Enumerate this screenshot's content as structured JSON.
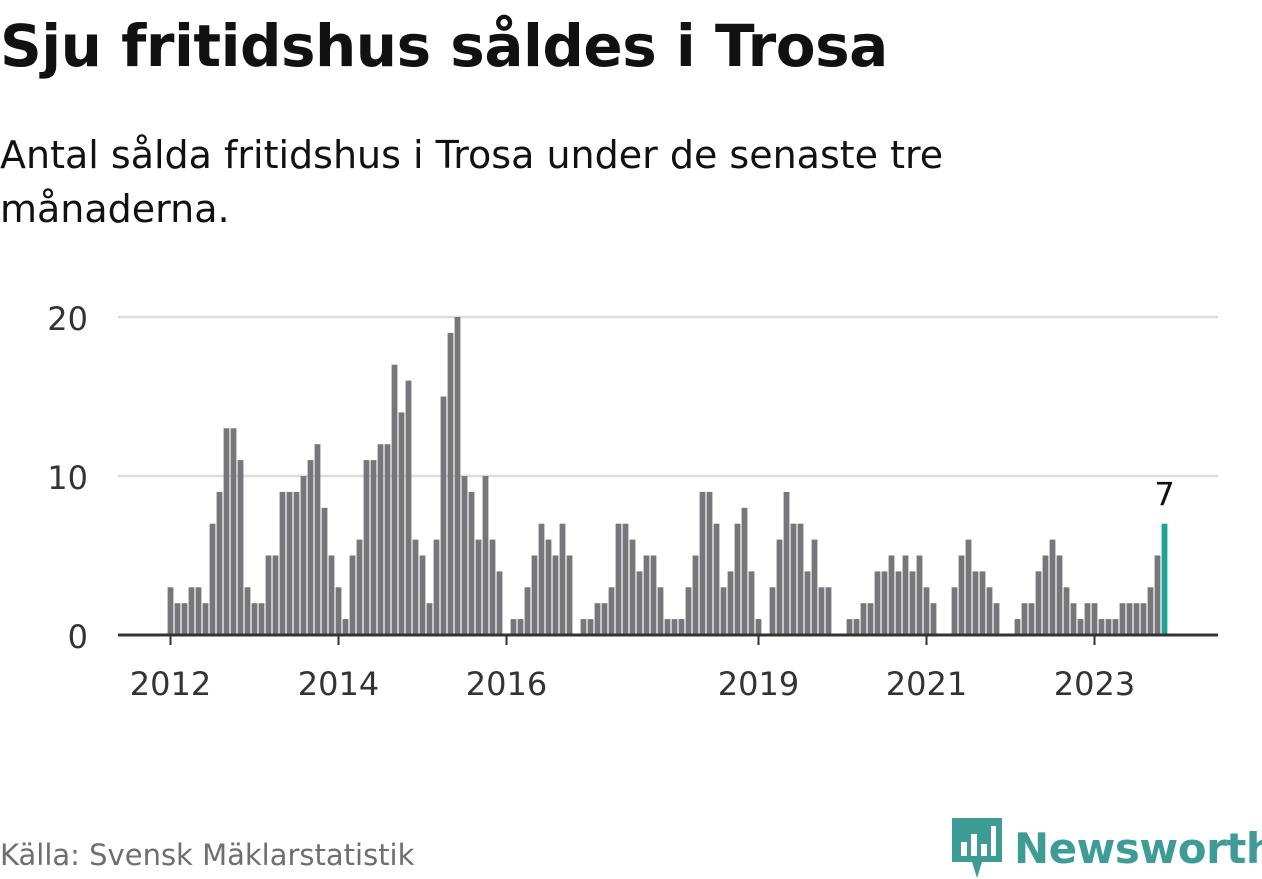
{
  "header": {
    "title": "Sju fritidshus såldes i Trosa",
    "subtitle": "Antal sålda fritidshus i Trosa under de senaste tre månaderna."
  },
  "footer": {
    "source": "Källa: Svensk Mäklarstatistik",
    "brand": "Newsworthy"
  },
  "colors": {
    "bar": "#76767b",
    "highlight": "#1fa396",
    "grid": "#dcdcdc",
    "axis": "#333333",
    "brand": "#3d9d96"
  },
  "chart_data": {
    "type": "bar",
    "title": "Sju fritidshus såldes i Trosa",
    "subtitle": "Antal sålda fritidshus i Trosa under de senaste tre månaderna.",
    "frequency": "monthly",
    "start": "2012-01",
    "end": "2023-11",
    "ylim": [
      0,
      20
    ],
    "yticks": [
      0,
      10,
      20
    ],
    "xticks": [
      "2012",
      "2014",
      "2016",
      "2019",
      "2021",
      "2023"
    ],
    "grid": true,
    "values": [
      3,
      2,
      2,
      3,
      3,
      2,
      7,
      9,
      13,
      13,
      11,
      3,
      2,
      2,
      5,
      5,
      9,
      9,
      9,
      10,
      11,
      12,
      8,
      5,
      3,
      1,
      5,
      6,
      11,
      11,
      12,
      12,
      17,
      14,
      16,
      6,
      5,
      2,
      6,
      15,
      19,
      20,
      10,
      9,
      6,
      10,
      6,
      4,
      0,
      1,
      1,
      3,
      5,
      7,
      6,
      5,
      7,
      5,
      0,
      1,
      1,
      2,
      2,
      3,
      7,
      7,
      6,
      4,
      5,
      5,
      3,
      1,
      1,
      1,
      3,
      5,
      9,
      9,
      7,
      3,
      4,
      7,
      8,
      4,
      1,
      0,
      3,
      6,
      9,
      7,
      7,
      4,
      6,
      3,
      3,
      0,
      0,
      1,
      1,
      2,
      2,
      4,
      4,
      5,
      4,
      5,
      4,
      5,
      3,
      2,
      0,
      0,
      3,
      5,
      6,
      4,
      4,
      3,
      2,
      0,
      0,
      1,
      2,
      2,
      4,
      5,
      6,
      5,
      3,
      2,
      1,
      2,
      2,
      1,
      1,
      1,
      2,
      2,
      2,
      2,
      3,
      5,
      7
    ],
    "highlight": {
      "label": "7",
      "value": 7
    }
  }
}
